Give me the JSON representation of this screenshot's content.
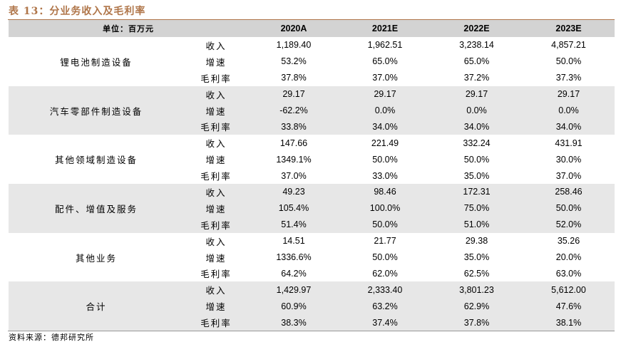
{
  "title": "表 13：分业务收入及毛利率",
  "header": {
    "unit_label": "单位：百万元",
    "years": [
      "2020A",
      "2021E",
      "2022E",
      "2023E"
    ]
  },
  "segments": [
    {
      "name": "锂电池制造设备",
      "rows": [
        {
          "metric": "收入",
          "values": [
            "1,189.40",
            "1,962.51",
            "3,238.14",
            "4,857.21"
          ]
        },
        {
          "metric": "增速",
          "values": [
            "53.2%",
            "65.0%",
            "65.0%",
            "50.0%"
          ]
        },
        {
          "metric": "毛利率",
          "values": [
            "37.8%",
            "37.0%",
            "37.2%",
            "37.3%"
          ]
        }
      ]
    },
    {
      "name": "汽车零部件制造设备",
      "rows": [
        {
          "metric": "收入",
          "values": [
            "29.17",
            "29.17",
            "29.17",
            "29.17"
          ]
        },
        {
          "metric": "增速",
          "values": [
            "-62.2%",
            "0.0%",
            "0.0%",
            "0.0%"
          ]
        },
        {
          "metric": "毛利率",
          "values": [
            "33.8%",
            "34.0%",
            "34.0%",
            "34.0%"
          ]
        }
      ]
    },
    {
      "name": "其他领域制造设备",
      "rows": [
        {
          "metric": "收入",
          "values": [
            "147.66",
            "221.49",
            "332.24",
            "431.91"
          ]
        },
        {
          "metric": "增速",
          "values": [
            "1349.1%",
            "50.0%",
            "50.0%",
            "30.0%"
          ]
        },
        {
          "metric": "毛利率",
          "values": [
            "37.0%",
            "33.0%",
            "35.0%",
            "37.0%"
          ]
        }
      ]
    },
    {
      "name": "配件、增值及服务",
      "rows": [
        {
          "metric": "收入",
          "values": [
            "49.23",
            "98.46",
            "172.31",
            "258.46"
          ]
        },
        {
          "metric": "增速",
          "values": [
            "105.4%",
            "100.0%",
            "75.0%",
            "50.0%"
          ]
        },
        {
          "metric": "毛利率",
          "values": [
            "51.4%",
            "50.0%",
            "51.0%",
            "52.0%"
          ]
        }
      ]
    },
    {
      "name": "其他业务",
      "rows": [
        {
          "metric": "收入",
          "values": [
            "14.51",
            "21.77",
            "29.38",
            "35.26"
          ]
        },
        {
          "metric": "增速",
          "values": [
            "1336.6%",
            "50.0%",
            "35.0%",
            "20.0%"
          ]
        },
        {
          "metric": "毛利率",
          "values": [
            "64.2%",
            "62.0%",
            "62.5%",
            "63.0%"
          ]
        }
      ]
    },
    {
      "name": "合计",
      "rows": [
        {
          "metric": "收入",
          "values": [
            "1,429.97",
            "2,333.40",
            "3,801.23",
            "5,612.00"
          ]
        },
        {
          "metric": "增速",
          "values": [
            "60.9%",
            "63.2%",
            "62.9%",
            "47.6%"
          ]
        },
        {
          "metric": "毛利率",
          "values": [
            "38.3%",
            "37.4%",
            "37.8%",
            "38.1%"
          ]
        }
      ]
    }
  ],
  "source": "资料来源：德邦研究所"
}
